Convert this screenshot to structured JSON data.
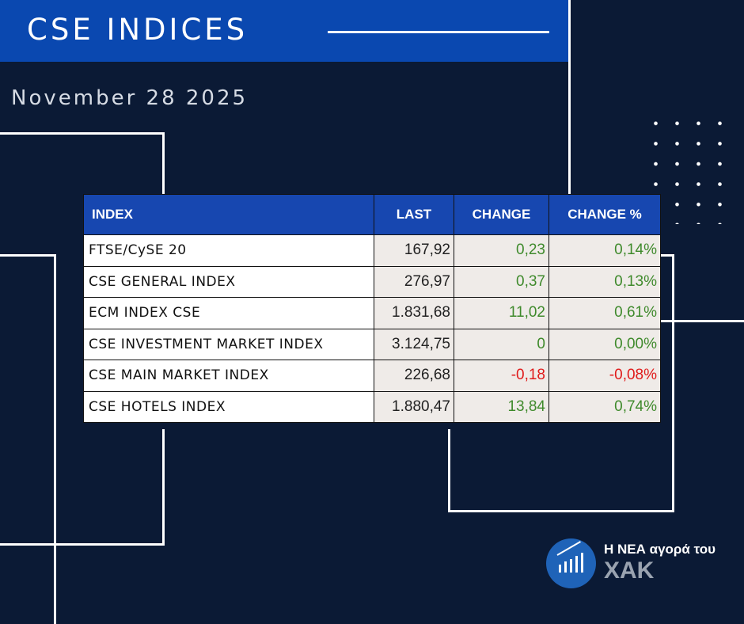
{
  "header": {
    "title": "CSE INDICES"
  },
  "date": "November 28 2025",
  "table": {
    "columns": [
      "INDEX",
      "LAST",
      "CHANGE",
      "CHANGE %"
    ],
    "rows": [
      {
        "name": "FTSE/CySE 20",
        "last": "167,92",
        "change": "0,23",
        "change_pct": "0,14%",
        "dir": "pos"
      },
      {
        "name": "CSE GENERAL INDEX",
        "last": "276,97",
        "change": "0,37",
        "change_pct": "0,13%",
        "dir": "pos"
      },
      {
        "name": "ECM INDEX CSE",
        "last": "1.831,68",
        "change": "11,02",
        "change_pct": "0,61%",
        "dir": "pos"
      },
      {
        "name": "CSE INVESTMENT MARKET INDEX",
        "last": "3.124,75",
        "change": "0",
        "change_pct": "0,00%",
        "dir": "zero"
      },
      {
        "name": "CSE MAIN MARKET INDEX",
        "last": "226,68",
        "change": "-0,18",
        "change_pct": "-0,08%",
        "dir": "neg"
      },
      {
        "name": "CSE HOTELS INDEX",
        "last": "1.880,47",
        "change": "13,84",
        "change_pct": "0,74%",
        "dir": "pos"
      }
    ]
  },
  "logo": {
    "line1": "Η ΝΕΑ αγορά του",
    "line2": "ΧΑΚ",
    "icon": "bar-chart-icon"
  },
  "colors": {
    "background": "#0b1a35",
    "header": "#0a48b0",
    "positive": "#3f8a2c",
    "negative": "#e01b1b"
  }
}
